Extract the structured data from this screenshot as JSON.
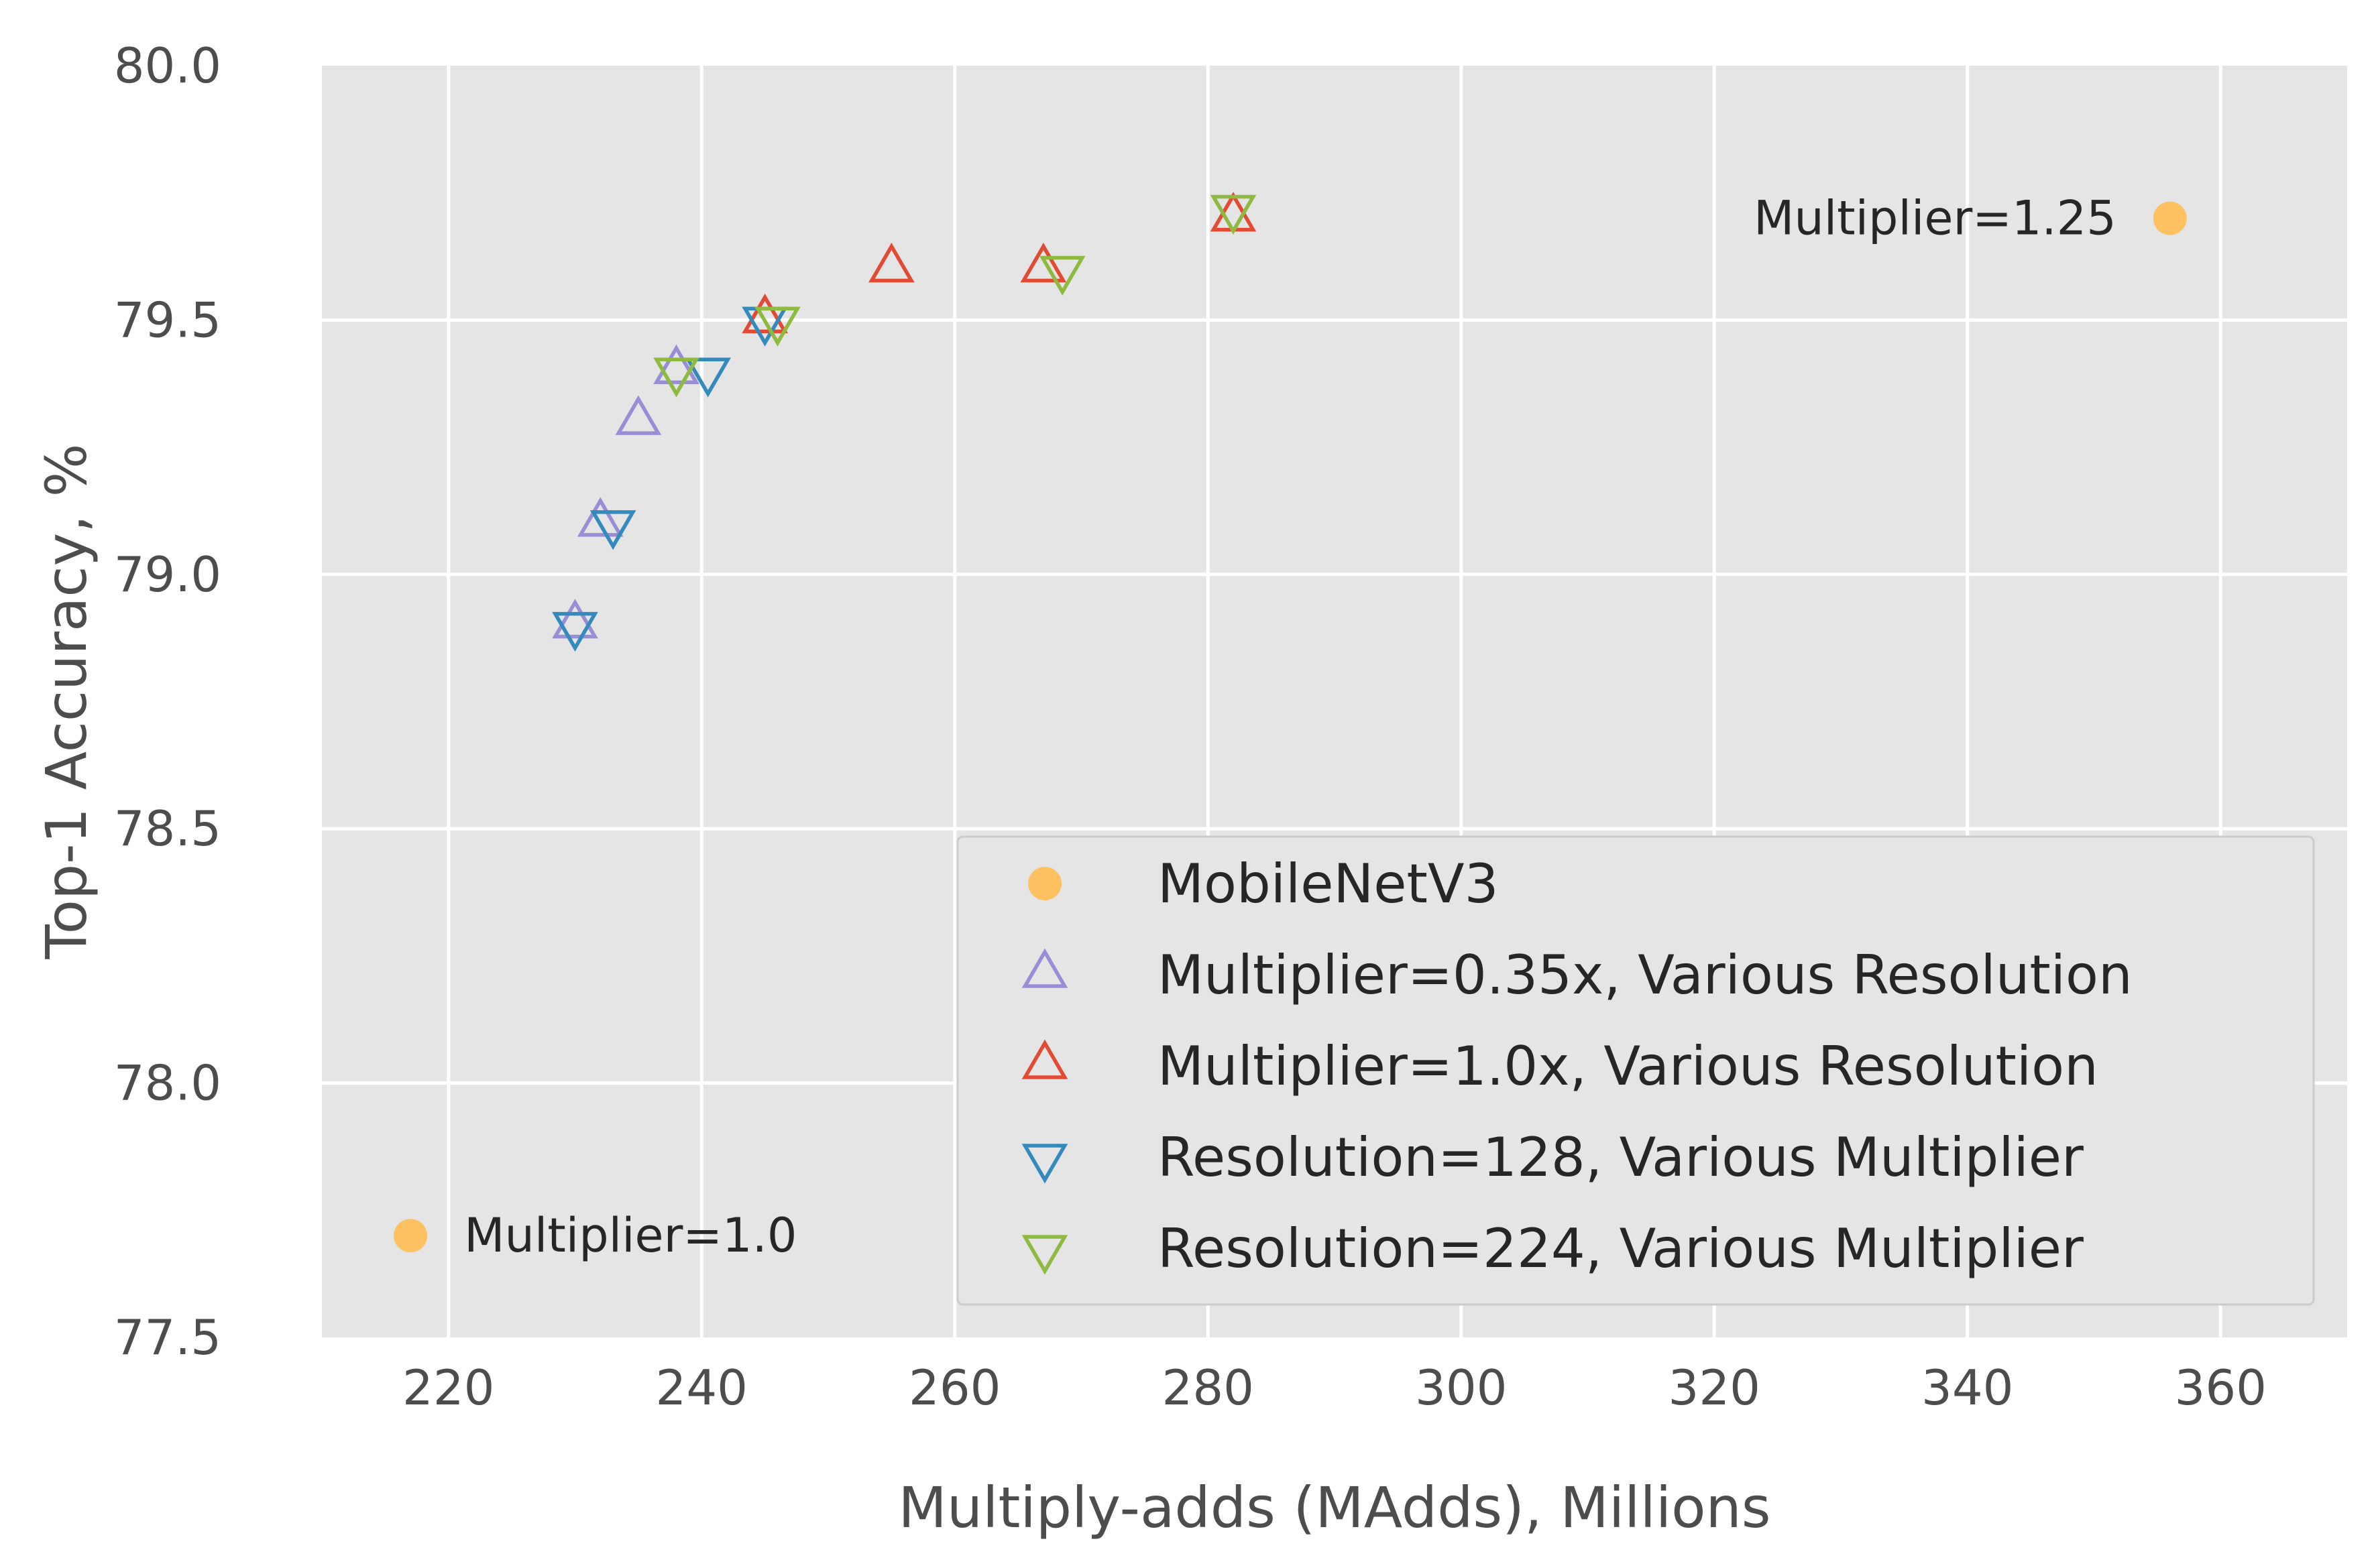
{
  "chart_data": {
    "type": "scatter",
    "title": "",
    "xlabel": "Multiply-adds (MAdds), Millions",
    "ylabel": "Top-1 Accuracy, %",
    "xlim": [
      210,
      370
    ],
    "ylim": [
      77.5,
      80.0
    ],
    "x_ticks": [
      220,
      240,
      260,
      280,
      300,
      320,
      340,
      360
    ],
    "y_ticks": [
      77.5,
      78.0,
      78.5,
      79.0,
      79.5,
      80.0
    ],
    "x_tick_labels": [
      "220",
      "240",
      "260",
      "280",
      "300",
      "320",
      "340",
      "360"
    ],
    "y_tick_labels": [
      "77.5",
      "78.0",
      "78.5",
      "79.0",
      "79.5",
      "80.0"
    ],
    "grid": true,
    "legend_position": "lower-right",
    "series": [
      {
        "name": "MobileNetV3",
        "marker": "circle",
        "color": "#fdc161",
        "points": [
          {
            "x": 217,
            "y": 77.7
          },
          {
            "x": 356,
            "y": 79.7
          }
        ]
      },
      {
        "name": "Multiplier=0.35x, Various Resolution",
        "marker": "triangle-up",
        "color": "#988ed5",
        "points": [
          {
            "x": 230,
            "y": 78.9
          },
          {
            "x": 232,
            "y": 79.1
          },
          {
            "x": 235,
            "y": 79.3
          },
          {
            "x": 238,
            "y": 79.4
          }
        ]
      },
      {
        "name": "Multiplier=1.0x, Various Resolution",
        "marker": "triangle-up",
        "color": "#e24a33",
        "points": [
          {
            "x": 245,
            "y": 79.5
          },
          {
            "x": 255,
            "y": 79.6
          },
          {
            "x": 267,
            "y": 79.6
          },
          {
            "x": 282,
            "y": 79.7
          }
        ]
      },
      {
        "name": "Resolution=128, Various Multiplier",
        "marker": "triangle-down",
        "color": "#348abd",
        "points": [
          {
            "x": 230,
            "y": 78.9
          },
          {
            "x": 233,
            "y": 79.1
          },
          {
            "x": 240.5,
            "y": 79.4
          },
          {
            "x": 245,
            "y": 79.5
          }
        ]
      },
      {
        "name": "Resolution=224, Various Multiplier",
        "marker": "triangle-down",
        "color": "#8eba42",
        "points": [
          {
            "x": 238,
            "y": 79.4
          },
          {
            "x": 246,
            "y": 79.5
          },
          {
            "x": 268.5,
            "y": 79.6
          },
          {
            "x": 282,
            "y": 79.72
          }
        ]
      }
    ],
    "annotations": [
      {
        "text": "Multiplier=1.0",
        "x": 217,
        "y": 77.7,
        "side": "right"
      },
      {
        "text": "Multiplier=1.25",
        "x": 356,
        "y": 79.7,
        "side": "left"
      }
    ]
  }
}
